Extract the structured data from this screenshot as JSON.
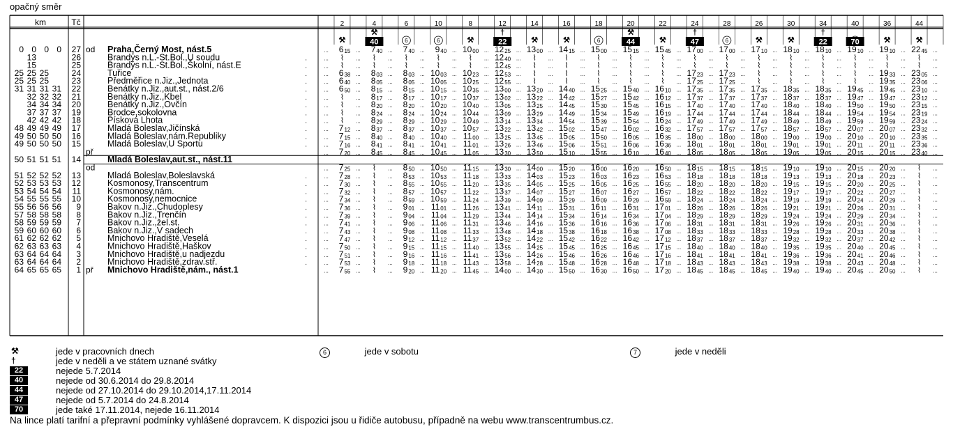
{
  "header": {
    "title": "opačný směr",
    "km_label": "km",
    "tc_label": "Tč"
  },
  "train_numbers": [
    "2",
    "4",
    "6",
    "10",
    "8",
    "12",
    "14",
    "16",
    "18",
    "20",
    "22",
    "24",
    "28",
    "26",
    "30",
    "34",
    "40",
    "36",
    "44"
  ],
  "train_marks": {
    "2": {
      "sym": "⚒"
    },
    "4": {
      "sym": "⚒",
      "badge": "40"
    },
    "6": {
      "circle": "6"
    },
    "10": {
      "circle": "6"
    },
    "8": {
      "sym": "⚒"
    },
    "12": {
      "sym": "†",
      "badge": "22"
    },
    "14": {
      "sym": "⚒"
    },
    "16": {
      "sym": "⚒"
    },
    "18": {
      "circle": "6"
    },
    "20": {
      "sym": "⚒",
      "badge": "44"
    },
    "22": {
      "sym": "⚒"
    },
    "24": {
      "sym": "†",
      "badge": "47"
    },
    "28": {
      "circle": "6"
    },
    "26": {
      "sym": "⚒"
    },
    "30": {
      "sym": "⚒"
    },
    "34": {
      "sym": "†",
      "badge": "22"
    },
    "40": {
      "circle": "7",
      "badge": "70"
    },
    "36": {
      "sym": "⚒"
    },
    "44": {
      "sym": "⚒"
    }
  },
  "stops": [
    {
      "km": [
        "0",
        "0",
        "0",
        "0"
      ],
      "tc": "27",
      "mark": "od",
      "name": "Praha,Černý Most, nást.5",
      "bold": true,
      "t": [
        "6 15",
        "7 40",
        "7 40",
        "9 40",
        "10 00",
        "12 25",
        "13 00",
        "14 15",
        "15 00",
        "15 15",
        "15 45",
        "17 00",
        "17 00",
        "17 10",
        "18 10",
        "18 10",
        "19 10",
        "19 10",
        "22 45"
      ]
    },
    {
      "km": [
        "",
        "13",
        "",
        ""
      ],
      "tc": "26",
      "mark": "",
      "name": "Brandýs n.L.-St.Bol.,U soudu",
      "t": [
        "",
        "",
        "",
        "",
        "",
        "12 40",
        "",
        "",
        "",
        "",
        "",
        "",
        "",
        "",
        "",
        "",
        "",
        "",
        ""
      ]
    },
    {
      "km": [
        "",
        "15",
        "",
        ""
      ],
      "tc": "25",
      "mark": "",
      "name": "Brandýs n.L.-St.Bol.,Školní, nást.E",
      "t": [
        "",
        "",
        "",
        "",
        "",
        "12 45",
        "",
        "",
        "",
        "",
        "",
        "",
        "",
        "",
        "",
        "",
        "",
        "",
        ""
      ]
    },
    {
      "km": [
        "25",
        "25",
        "25",
        ""
      ],
      "tc": "24",
      "mark": "",
      "name": "Tuřice",
      "t": [
        "6 38",
        "8 03",
        "8 03",
        "10 03",
        "10 23",
        "12 53",
        "",
        "",
        "",
        "",
        "",
        "17 23",
        "17 23",
        "",
        "",
        "",
        "",
        "19 33",
        "23 05"
      ]
    },
    {
      "km": [
        "25",
        "25",
        "25",
        ""
      ],
      "tc": "23",
      "mark": "",
      "name": "Předměřice n.Jiz.,Jednota",
      "t": [
        "6 40",
        "8 05",
        "8 05",
        "10 05",
        "10 25",
        "12 55",
        "",
        "",
        "",
        "",
        "",
        "17 25",
        "17 25",
        "",
        "",
        "",
        "",
        "19 35",
        "23 06"
      ]
    },
    {
      "km": [
        "31",
        "31",
        "31",
        "31"
      ],
      "tc": "22",
      "mark": "",
      "name": "Benátky n.Jiz.,aut.st., nást.2/6",
      "t": [
        "6 50",
        "8 15",
        "8 15",
        "10 15",
        "10 35",
        "13 00",
        "13 20",
        "14 40",
        "15 25",
        "15 40",
        "16 10",
        "17 35",
        "17 35",
        "17 35",
        "18 35",
        "18 35",
        "19 45",
        "19 45",
        "23 10"
      ]
    },
    {
      "km": [
        "",
        "32",
        "32",
        "32"
      ],
      "tc": "21",
      "mark": "",
      "name": "Benátky n.Jiz.,Kbel",
      "t": [
        "",
        "8 17",
        "8 17",
        "10 17",
        "10 37",
        "13 02",
        "13 22",
        "14 42",
        "15 27",
        "15 42",
        "16 12",
        "17 37",
        "17 37",
        "17 37",
        "18 37",
        "18 37",
        "19 47",
        "19 47",
        "23 12"
      ]
    },
    {
      "km": [
        "",
        "34",
        "34",
        "34"
      ],
      "tc": "20",
      "mark": "",
      "name": "Benátky n.Jiz.,Ovčín",
      "t": [
        "",
        "8 20",
        "8 20",
        "10 20",
        "10 40",
        "13 05",
        "13 25",
        "14 45",
        "15 30",
        "15 45",
        "16 15",
        "17 40",
        "17 40",
        "17 40",
        "18 40",
        "18 40",
        "19 50",
        "19 50",
        "23 15"
      ]
    },
    {
      "km": [
        "",
        "37",
        "37",
        "37"
      ],
      "tc": "19",
      "mark": "",
      "name": "Brodce,sokolovna",
      "t": [
        "",
        "8 24",
        "8 24",
        "10 24",
        "10 44",
        "13 09",
        "13 29",
        "14 49",
        "15 34",
        "15 49",
        "16 19",
        "17 44",
        "17 44",
        "17 44",
        "18 44",
        "18 44",
        "19 54",
        "19 54",
        "23 19"
      ]
    },
    {
      "km": [
        "",
        "42",
        "42",
        "42"
      ],
      "tc": "18",
      "mark": "",
      "name": "Písková Lhota",
      "t": [
        "",
        "8 29",
        "8 29",
        "10 29",
        "10 49",
        "13 14",
        "13 34",
        "14 54",
        "15 39",
        "15 54",
        "16 24",
        "17 49",
        "17 49",
        "17 49",
        "18 49",
        "18 49",
        "19 59",
        "19 59",
        "23 24"
      ]
    },
    {
      "km": [
        "48",
        "49",
        "49",
        "49"
      ],
      "tc": "17",
      "mark": "",
      "name": "Mladá Boleslav,Jičínská",
      "t": [
        "7 12",
        "8 37",
        "8 37",
        "10 37",
        "10 57",
        "13 22",
        "13 42",
        "15 02",
        "15 47",
        "16 02",
        "16 32",
        "17 57",
        "17 57",
        "17 57",
        "18 57",
        "18 57",
        "20 07",
        "20 07",
        "23 32"
      ]
    },
    {
      "km": [
        "49",
        "50",
        "50",
        "50"
      ],
      "tc": "16",
      "mark": "",
      "name": "Mladá Boleslav,nám.Republiky",
      "t": [
        "7 15",
        "8 40",
        "8 40",
        "10 40",
        "11 00",
        "13 25",
        "13 45",
        "15 05",
        "15 50",
        "16 05",
        "16 35",
        "18 00",
        "18 00",
        "18 00",
        "19 00",
        "19 00",
        "20 10",
        "20 10",
        "23 35"
      ]
    },
    {
      "km": [
        "49",
        "50",
        "50",
        "50"
      ],
      "tc": "15",
      "mark": "",
      "name": "Mladá Boleslav,U Sportu",
      "t": [
        "7 16",
        "8 41",
        "8 41",
        "10 41",
        "11 01",
        "13 26",
        "13 46",
        "15 06",
        "15 51",
        "16 06",
        "16 36",
        "18 01",
        "18 01",
        "18 01",
        "19 01",
        "19 01",
        "20 11",
        "20 11",
        "23 36"
      ]
    },
    {
      "km": [
        "",
        "",
        "",
        ""
      ],
      "tc": "",
      "mark": "př",
      "name": "",
      "t": [
        "7 20",
        "8 45",
        "8 45",
        "10 45",
        "11 05",
        "13 30",
        "13 50",
        "15 10",
        "15 55",
        "16 10",
        "16 40",
        "18 05",
        "18 05",
        "18 05",
        "19 05",
        "19 05",
        "20 15",
        "20 15",
        "23 40"
      ]
    },
    {
      "km": [
        "50",
        "51",
        "51",
        "51"
      ],
      "tc": "14",
      "mark": "",
      "name": "Mladá Boleslav,aut.st., nást.11",
      "bold": true,
      "t": [
        "",
        "",
        "",
        "",
        "",
        "",
        "",
        "",
        "",
        "",
        "",
        "",
        "",
        "",
        "",
        "",
        "",
        "",
        ""
      ]
    },
    {
      "km": [
        "",
        "",
        "",
        ""
      ],
      "tc": "",
      "mark": "od",
      "name": "",
      "t": [
        "7 25",
        "",
        "8 50",
        "10 50",
        "11 15",
        "13 30",
        "14 00",
        "15 20",
        "16 00",
        "16 20",
        "16 50",
        "18 15",
        "18 15",
        "18 15",
        "19 10",
        "19 10",
        "20 15",
        "20 20",
        ""
      ]
    },
    {
      "km": [
        "51",
        "52",
        "52",
        "52"
      ],
      "tc": "13",
      "mark": "",
      "name": "Mladá Boleslav,Boleslavská",
      "t": [
        "7 28",
        "",
        "8 53",
        "10 53",
        "11 18",
        "13 33",
        "14 03",
        "15 23",
        "16 03",
        "16 23",
        "16 53",
        "18 18",
        "18 18",
        "18 18",
        "19 13",
        "19 13",
        "20 18",
        "20 23",
        ""
      ]
    },
    {
      "km": [
        "52",
        "53",
        "53",
        "53"
      ],
      "tc": "12",
      "mark": "",
      "name": "Kosmonosy,Transcentrum",
      "t": [
        "7 30",
        "",
        "8 55",
        "10 55",
        "11 20",
        "13 35",
        "14 05",
        "15 25",
        "16 05",
        "16 25",
        "16 55",
        "18 20",
        "18 20",
        "18 20",
        "19 15",
        "19 15",
        "20 20",
        "20 25",
        ""
      ]
    },
    {
      "km": [
        "53",
        "54",
        "54",
        "54"
      ],
      "tc": "11",
      "mark": "",
      "name": "Kosmonosy,nám.",
      "t": [
        "7 32",
        "",
        "8 57",
        "10 57",
        "11 22",
        "13 37",
        "14 07",
        "15 27",
        "16 07",
        "16 27",
        "16 57",
        "18 22",
        "18 22",
        "18 22",
        "19 17",
        "19 17",
        "20 22",
        "20 27",
        ""
      ]
    },
    {
      "km": [
        "54",
        "55",
        "55",
        "55"
      ],
      "tc": "10",
      "mark": "",
      "name": "Kosmonosy,nemocnice",
      "t": [
        "7 34",
        "",
        "8 59",
        "10 59",
        "11 24",
        "13 39",
        "14 09",
        "15 29",
        "16 09",
        "16 29",
        "16 59",
        "18 24",
        "18 24",
        "18 24",
        "19 19",
        "19 19",
        "20 24",
        "20 29",
        ""
      ]
    },
    {
      "km": [
        "55",
        "56",
        "56",
        "56"
      ],
      "tc": "9",
      "mark": "",
      "name": "Bakov n.Jiz.,Chudoplesy",
      "t": [
        "7 36",
        "",
        "9 01",
        "11 01",
        "11 26",
        "13 41",
        "14 11",
        "15 31",
        "16 11",
        "16 31",
        "17 01",
        "18 26",
        "18 26",
        "18 26",
        "19 21",
        "19 21",
        "20 26",
        "20 31",
        ""
      ]
    },
    {
      "km": [
        "57",
        "58",
        "58",
        "58"
      ],
      "tc": "8",
      "mark": "",
      "name": "Bakov n.Jiz.,Trenčín",
      "t": [
        "7 39",
        "",
        "9 04",
        "11 04",
        "11 29",
        "13 44",
        "14 14",
        "15 34",
        "16 14",
        "16 34",
        "17 04",
        "18 29",
        "18 29",
        "18 29",
        "19 24",
        "19 24",
        "20 29",
        "20 34",
        ""
      ]
    },
    {
      "km": [
        "58",
        "59",
        "59",
        "59"
      ],
      "tc": "7",
      "mark": "",
      "name": "Bakov n.Jiz.,žel.st.",
      "t": [
        "7 41",
        "",
        "9 06",
        "11 06",
        "11 31",
        "13 46",
        "14 16",
        "15 36",
        "16 16",
        "16 36",
        "17 06",
        "18 31",
        "18 31",
        "18 31",
        "19 26",
        "19 26",
        "20 31",
        "20 36",
        ""
      ]
    },
    {
      "km": [
        "59",
        "60",
        "60",
        "60"
      ],
      "tc": "6",
      "mark": "",
      "name": "Bakov n.Jiz.,V sadech",
      "t": [
        "7 43",
        "",
        "9 08",
        "11 08",
        "11 33",
        "13 48",
        "14 18",
        "15 38",
        "16 18",
        "16 38",
        "17 08",
        "18 33",
        "18 33",
        "18 33",
        "19 28",
        "19 28",
        "20 33",
        "20 38",
        ""
      ]
    },
    {
      "km": [
        "61",
        "62",
        "62",
        "62"
      ],
      "tc": "5",
      "mark": "",
      "name": "Mnichovo Hradiště,Veselá",
      "t": [
        "7 47",
        "",
        "9 12",
        "11 12",
        "11 37",
        "13 52",
        "14 22",
        "15 42",
        "16 22",
        "16 42",
        "17 12",
        "18 37",
        "18 37",
        "18 37",
        "19 32",
        "19 32",
        "20 37",
        "20 42",
        ""
      ]
    },
    {
      "km": [
        "62",
        "63",
        "63",
        "63"
      ],
      "tc": "4",
      "mark": "",
      "name": "Mnichovo Hradiště,Haškov",
      "t": [
        "7 50",
        "",
        "9 15",
        "11 15",
        "11 40",
        "13 55",
        "14 25",
        "15 45",
        "16 25",
        "16 45",
        "17 15",
        "18 40",
        "18 40",
        "18 40",
        "19 35",
        "19 35",
        "20 40",
        "20 45",
        ""
      ]
    },
    {
      "km": [
        "63",
        "64",
        "64",
        "64"
      ],
      "tc": "3",
      "mark": "",
      "name": "Mnichovo Hradiště,u nadjezdu",
      "t": [
        "7 51",
        "",
        "9 16",
        "11 16",
        "11 41",
        "13 56",
        "14 26",
        "15 46",
        "16 26",
        "16 46",
        "17 16",
        "18 41",
        "18 41",
        "18 41",
        "19 36",
        "19 36",
        "20 41",
        "20 46",
        ""
      ]
    },
    {
      "km": [
        "63",
        "64",
        "64",
        "64"
      ],
      "tc": "2",
      "mark": "",
      "name": "Mnichovo Hradiště,zdrav.stř.",
      "t": [
        "7 53",
        "",
        "9 18",
        "11 18",
        "11 43",
        "13 58",
        "14 28",
        "15 48",
        "16 28",
        "16 48",
        "17 18",
        "18 43",
        "18 43",
        "18 43",
        "19 38",
        "19 38",
        "20 43",
        "20 48",
        ""
      ]
    },
    {
      "km": [
        "64",
        "65",
        "65",
        "65"
      ],
      "tc": "1",
      "mark": "př",
      "name": "Mnichovo Hradiště,nám., nást.1",
      "bold": true,
      "t": [
        "7 55",
        "",
        "9 20",
        "11 20",
        "11 45",
        "14 00",
        "14 30",
        "15 50",
        "16 30",
        "16 50",
        "17 20",
        "18 45",
        "18 45",
        "18 45",
        "19 40",
        "19 40",
        "20 45",
        "20 50",
        ""
      ]
    }
  ],
  "legend": {
    "pick": "jede v pracovních dnech",
    "cross": "jede v neděli a ve státem uznané svátky",
    "six": "jede v sobotu",
    "seven": "jede v neděli",
    "six_symbol": "6",
    "seven_symbol": "7",
    "badges": [
      {
        "code": "22",
        "text": "nejede 5.7.2014"
      },
      {
        "code": "40",
        "text": "nejede od 30.6.2014 do 29.8.2014"
      },
      {
        "code": "44",
        "text": "nejede od 27.10.2014 do 29.10.2014,17.11.2014"
      },
      {
        "code": "47",
        "text": "nejede od 5.7.2014 do 24.8.2014"
      },
      {
        "code": "70",
        "text": "jede také 17.11.2014, nejede 16.11.2014"
      }
    ],
    "footer": "Na lince platí tarifní a přepravní podmínky vyhlášené dopravcem. K dispozici jsou u řidiče autobusu, případně na webu www.transcentrumbus.cz."
  }
}
